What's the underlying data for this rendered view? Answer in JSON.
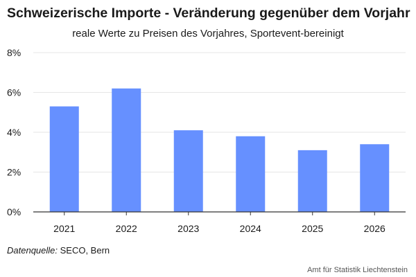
{
  "header": {
    "title": "Schweizerische Importe - Veränderung gegenüber dem Vorjahr",
    "subtitle": "reale Werte zu Preisen des Vorjahres, Sportevent-bereinigt"
  },
  "footer": {
    "source_label": "Datenquelle:",
    "source_value": " SECO, Bern",
    "credit": "Amt für Statistik Liechtenstein"
  },
  "colors": {
    "bar": "#6690ff",
    "grid": "#e6e6e6",
    "axis": "#333333"
  },
  "chart_data": {
    "type": "bar",
    "title": "Schweizerische Importe - Veränderung gegenüber dem Vorjahr",
    "subtitle": "reale Werte zu Preisen des Vorjahres, Sportevent-bereinigt",
    "categories": [
      "2021",
      "2022",
      "2023",
      "2024",
      "2025",
      "2026"
    ],
    "values": [
      5.3,
      6.2,
      4.1,
      3.8,
      3.1,
      3.4
    ],
    "unit": "%",
    "ylim": [
      0,
      8
    ],
    "yticks": [
      0,
      2,
      4,
      6,
      8
    ],
    "ytick_labels": [
      "0%",
      "2%",
      "4%",
      "6%",
      "8%"
    ],
    "xlabel": "",
    "ylabel": "",
    "grid": true,
    "legend": "none"
  }
}
